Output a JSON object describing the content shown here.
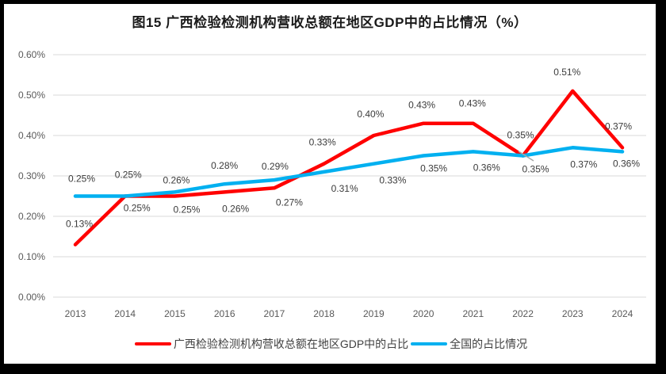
{
  "chart_data": {
    "type": "line",
    "title": "图15 广西检验检测机构营收总额在地区GDP中的占比情况（%）",
    "categories": [
      "2013",
      "2014",
      "2015",
      "2016",
      "2017",
      "2018",
      "2019",
      "2020",
      "2021",
      "2022",
      "2023",
      "2024"
    ],
    "y_axis": {
      "tick_values": [
        0.0,
        0.1,
        0.2,
        0.3,
        0.4,
        0.5,
        0.6
      ],
      "tick_labels": [
        "0.00%",
        "0.10%",
        "0.20%",
        "0.30%",
        "0.40%",
        "0.50%",
        "0.60%"
      ],
      "range": [
        0.0,
        0.6
      ],
      "grid": true
    },
    "legend_position": "bottom",
    "series": [
      {
        "name": "广西检验检测机构营收总额在地区GDP中的占比",
        "color": "#FF0000",
        "values": [
          0.13,
          0.25,
          0.25,
          0.26,
          0.27,
          0.33,
          0.4,
          0.43,
          0.43,
          0.35,
          0.51,
          0.37
        ],
        "point_labels": [
          "0.13%",
          "0.25%",
          "0.25%",
          "0.26%",
          "0.27%",
          "0.33%",
          "0.40%",
          "0.43%",
          "0.43%",
          "0.35%",
          "0.51%",
          "0.37%"
        ],
        "label_offsets": [
          [
            5,
            -22
          ],
          [
            15,
            19
          ],
          [
            15,
            21
          ],
          [
            14,
            25
          ],
          [
            19,
            22
          ],
          [
            -2,
            -23
          ],
          [
            -4,
            -23
          ],
          [
            -2,
            -19
          ],
          [
            -1,
            -21
          ],
          [
            -3,
            -22
          ],
          [
            -7,
            -20
          ],
          [
            -5,
            -23
          ]
        ]
      },
      {
        "name": "全国的占比情况",
        "color": "#00B0F0",
        "values": [
          0.25,
          0.25,
          0.26,
          0.28,
          0.29,
          0.31,
          0.33,
          0.35,
          0.36,
          0.35,
          0.37,
          0.36
        ],
        "point_labels": [
          "0.25%",
          "0.25%",
          "0.26%",
          "0.28%",
          "0.29%",
          "0.31%",
          "0.33%",
          "0.35%",
          "0.36%",
          "0.35%",
          "0.37%",
          "0.36%"
        ],
        "label_offsets": [
          [
            8,
            -18
          ],
          [
            4,
            -23
          ],
          [
            2,
            -11
          ],
          [
            0,
            -19
          ],
          [
            1,
            -13
          ],
          [
            26,
            25
          ],
          [
            24,
            25
          ],
          [
            13,
            20
          ],
          [
            17,
            24
          ],
          [
            16,
            21
          ],
          [
            14,
            25
          ],
          [
            5,
            19
          ]
        ],
        "leader_line": {
          "point_index": 9,
          "from": [
            649,
            186
          ],
          "to": [
            668,
            198
          ]
        }
      }
    ],
    "colors": {
      "grid": "#D9D9D9",
      "axis_text": "#595959",
      "data_label_text": "#3B3B3B",
      "leader_line": "#A6A6A6",
      "title_text": "#1A1A1A",
      "legend_text": "#404040",
      "background": "#FFFFFF",
      "frame_border": "#000000"
    }
  }
}
